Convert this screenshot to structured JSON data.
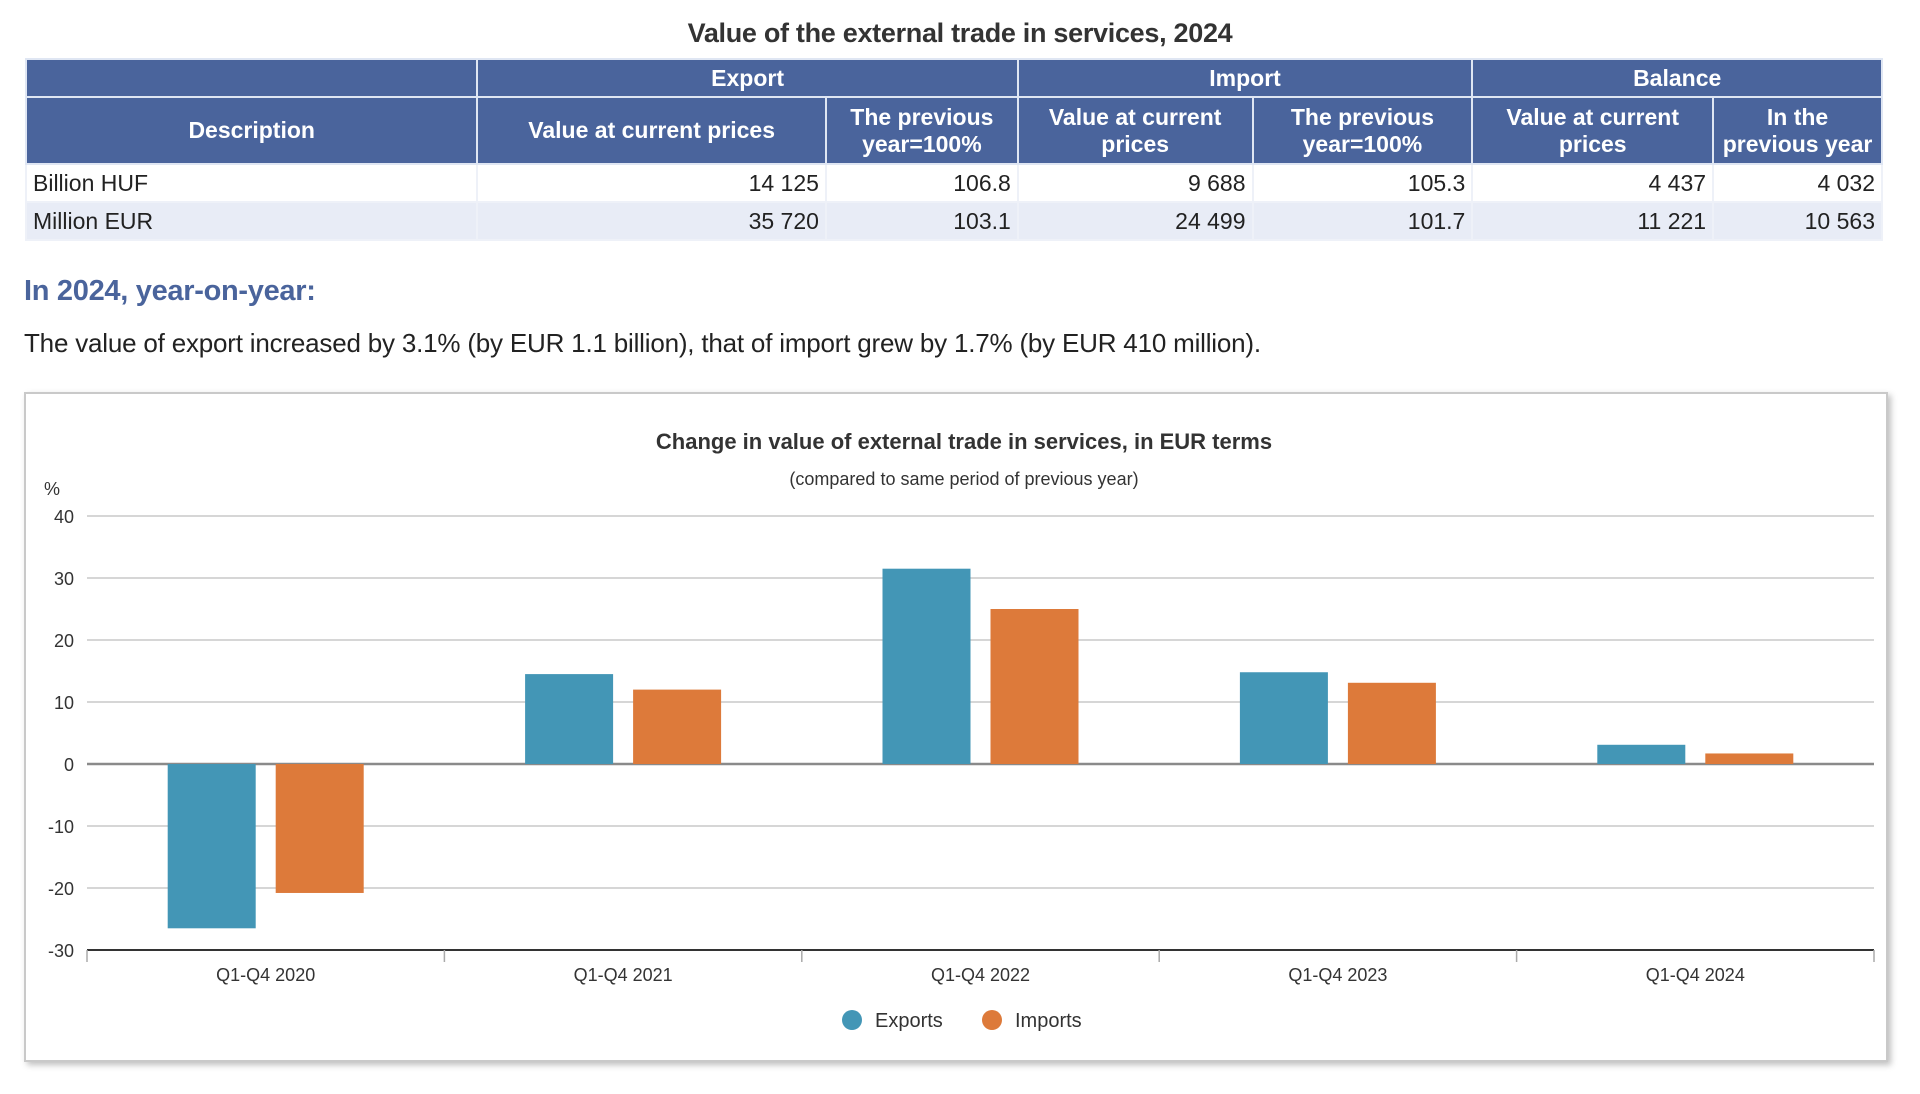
{
  "table": {
    "title": "Value of the external trade in services, 2024",
    "group_headers": [
      "",
      "Export",
      "Import",
      "Balance"
    ],
    "column_headers": [
      "Description",
      "Value at current prices",
      "The previous year=100%",
      "Value at current prices",
      "The previous year=100%",
      "Value at current prices",
      "In the previous year"
    ],
    "rows": [
      [
        "Billion HUF",
        "14 125",
        "106.8",
        "9 688",
        "105.3",
        "4 437",
        "4 032"
      ],
      [
        "Million EUR",
        "35 720",
        "103.1",
        "24 499",
        "101.7",
        "11 221",
        "10 563"
      ]
    ],
    "header_color": "#4a649c",
    "stripe_color": "#e8ecf6"
  },
  "summary": {
    "heading": "In 2024, year-on-year:",
    "text": "The value of export increased by 3.1% (by EUR 1.1 billion), that of import grew by 1.7% (by EUR 410 million)."
  },
  "chart_data": {
    "type": "bar",
    "title": "Change in value of external trade in services, in EUR terms",
    "subtitle": "(compared to same period of previous year)",
    "ylabel": "%",
    "xlabel": "",
    "ylim": [
      -30,
      40
    ],
    "yticks": [
      40,
      30,
      20,
      10,
      0,
      -10,
      -20,
      -30
    ],
    "grid": true,
    "legend_position": "bottom-center",
    "categories": [
      "Q1-Q4 2020",
      "Q1-Q4 2021",
      "Q1-Q4 2022",
      "Q1-Q4 2023",
      "Q1-Q4 2024"
    ],
    "series": [
      {
        "name": "Exports",
        "color": "#4396b6",
        "values": [
          -26.5,
          14.5,
          31.5,
          14.8,
          3.1
        ]
      },
      {
        "name": "Imports",
        "color": "#dd7a3a",
        "values": [
          -20.8,
          12.0,
          25.0,
          13.1,
          1.7
        ]
      }
    ]
  }
}
